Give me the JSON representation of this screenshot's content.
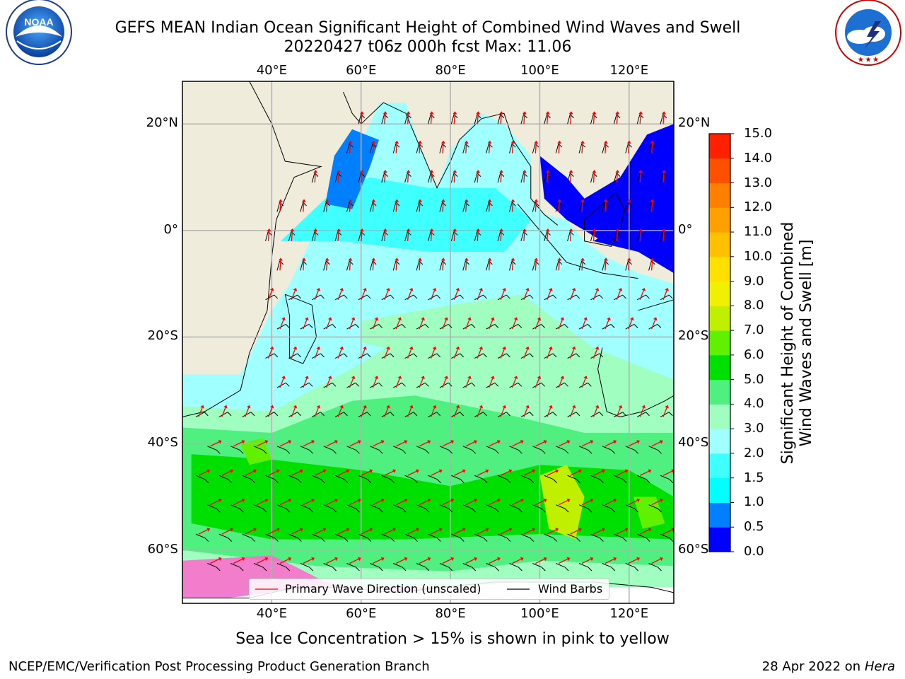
{
  "title": {
    "line1": "GEFS MEAN Indian Ocean Significant Height of Combined Wind Waves and Swell",
    "line2": "20220427 t06z 000h fcst   Max: 11.06"
  },
  "logos": {
    "noaa": {
      "text": "NOAA",
      "ring": "NATIONAL OCEANIC AND ATMOSPHERIC ADMINISTRATION · U.S. DEPARTMENT OF COMMERCE"
    },
    "nws": {
      "ring": "NATIONAL WEATHER SERVICE"
    }
  },
  "map": {
    "lon_range": [
      20,
      130
    ],
    "lat_range": [
      -70,
      28
    ],
    "lon_ticks": [
      {
        "lon": 40,
        "label": "40°E"
      },
      {
        "lon": 60,
        "label": "60°E"
      },
      {
        "lon": 80,
        "label": "80°E"
      },
      {
        "lon": 100,
        "label": "100°E"
      },
      {
        "lon": 120,
        "label": "120°E"
      }
    ],
    "lat_ticks": [
      {
        "lat": 20,
        "label": "20°N"
      },
      {
        "lat": 0,
        "label": "0°"
      },
      {
        "lat": -20,
        "label": "20°S"
      },
      {
        "lat": -40,
        "label": "40°S"
      },
      {
        "lat": -60,
        "label": "60°S"
      }
    ],
    "colors": {
      "land": "#efecdc",
      "grid": "#b0b0b0",
      "wave_arrow": "#ff0000",
      "wind_barb": "#000000",
      "ice": "#ff66cc"
    }
  },
  "colorbar": {
    "title_line1": "Significant Height of Combined",
    "title_line2": "Wind Waves and Swell [m]",
    "levels": [
      "0.0",
      "0.5",
      "1.0",
      "1.5",
      "2.0",
      "3.0",
      "4.0",
      "5.0",
      "6.0",
      "7.0",
      "8.0",
      "9.0",
      "10.0",
      "11.0",
      "12.0",
      "13.0",
      "14.0",
      "15.0"
    ],
    "colors": [
      "#0000ff",
      "#0080ff",
      "#00ffff",
      "#40ffff",
      "#a0ffff",
      "#a0ffc0",
      "#50f080",
      "#00e000",
      "#60f000",
      "#c0f000",
      "#f0f000",
      "#ffe000",
      "#ffc000",
      "#ffa000",
      "#ff8000",
      "#ff5000",
      "#ff2000"
    ]
  },
  "legend": {
    "wave_label": "Primary Wave Direction (unscaled)",
    "wind_label": "Wind Barbs"
  },
  "footer": {
    "ice_note": "Sea Ice Concentration > 15% is shown in pink to yellow",
    "credit": "NCEP/EMC/Verification Post Processing Product Generation Branch",
    "date": "28 Apr 2022 on",
    "machine": "Hera"
  }
}
